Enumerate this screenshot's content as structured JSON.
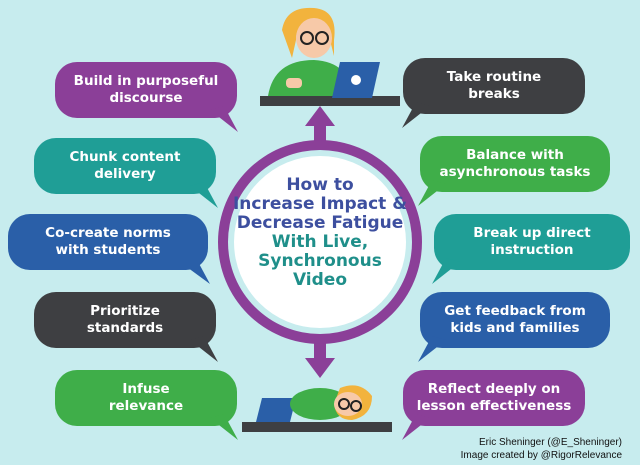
{
  "title": {
    "line1": "How to",
    "line2": "Increase Impact &",
    "line3": "Decrease Fatigue",
    "line4": "With Live,",
    "line5": "Synchronous",
    "line6": "Video"
  },
  "tips_left": [
    "Build in purposeful\ndiscourse",
    "Chunk content\ndelivery",
    "Co-create norms\nwith students",
    "Prioritize\nstandards",
    "Infuse\nrelevance"
  ],
  "tips_right": [
    "Take routine\nbreaks",
    "Balance with\nasynchronous tasks",
    "Break up direct\ninstruction",
    "Get feedback from\nkids and families",
    "Reflect deeply on\nlesson effectiveness"
  ],
  "credits": {
    "author": "Eric Sheninger (@E_Sheninger)",
    "designer": "Image created by @RigorRelevance"
  },
  "colors": {
    "background": "#c7ecee",
    "purple": "#8b3f98",
    "teal": "#1f9e96",
    "blue": "#2a5fa8",
    "gray": "#3e3f42",
    "green": "#3fae49",
    "ring": "#8b3f98"
  }
}
